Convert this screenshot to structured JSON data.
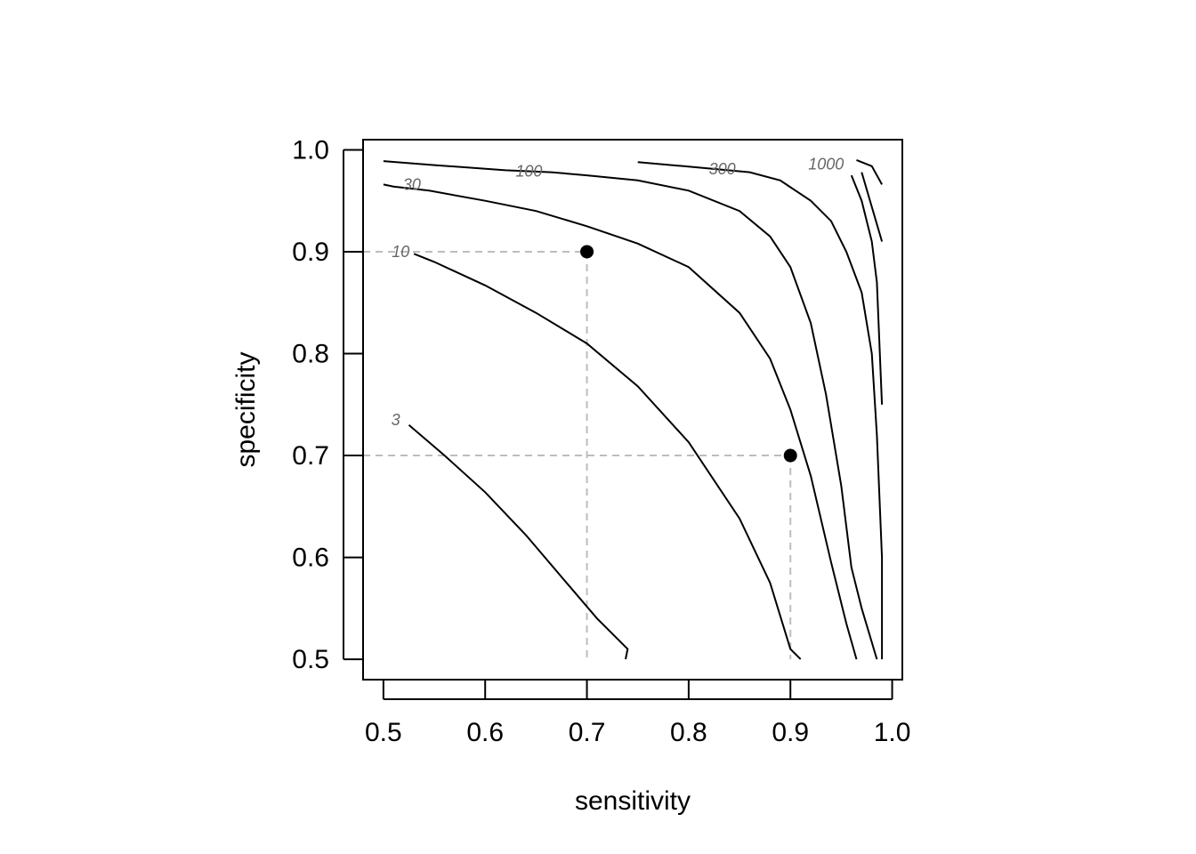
{
  "chart_data": {
    "type": "line",
    "subtype": "contour",
    "title": "",
    "xlabel": "sensitivity",
    "ylabel": "specificity",
    "xlim": [
      0.48,
      1.01
    ],
    "ylim": [
      0.48,
      1.01
    ],
    "xticks": [
      0.5,
      0.6,
      0.7,
      0.8,
      0.9,
      1.0
    ],
    "yticks": [
      0.5,
      0.6,
      0.7,
      0.8,
      0.9,
      1.0
    ],
    "xtick_labels": [
      "0.5",
      "0.6",
      "0.7",
      "0.8",
      "0.9",
      "1.0"
    ],
    "ytick_labels": [
      "0.5",
      "0.6",
      "0.7",
      "0.8",
      "0.9",
      "1.0"
    ],
    "grid": false,
    "series": [
      {
        "name": "3",
        "label_at": [
          0.512,
          0.735
        ],
        "points": [
          [
            0.525,
            0.73
          ],
          [
            0.56,
            0.7
          ],
          [
            0.6,
            0.664
          ],
          [
            0.64,
            0.622
          ],
          [
            0.68,
            0.575
          ],
          [
            0.71,
            0.54
          ],
          [
            0.74,
            0.51
          ],
          [
            0.738,
            0.5
          ]
        ]
      },
      {
        "name": "10",
        "label_at": [
          0.517,
          0.9
        ],
        "points": [
          [
            0.53,
            0.898
          ],
          [
            0.55,
            0.89
          ],
          [
            0.6,
            0.867
          ],
          [
            0.65,
            0.84
          ],
          [
            0.7,
            0.81
          ],
          [
            0.75,
            0.768
          ],
          [
            0.8,
            0.713
          ],
          [
            0.85,
            0.638
          ],
          [
            0.88,
            0.575
          ],
          [
            0.9,
            0.51
          ],
          [
            0.91,
            0.5
          ]
        ]
      },
      {
        "name": "30",
        "label_at": [
          0.528,
          0.966
        ],
        "points": [
          [
            0.5,
            0.966
          ],
          [
            0.51,
            0.964
          ],
          [
            0.545,
            0.96
          ],
          [
            0.6,
            0.95
          ],
          [
            0.65,
            0.94
          ],
          [
            0.7,
            0.925
          ],
          [
            0.75,
            0.908
          ],
          [
            0.8,
            0.885
          ],
          [
            0.85,
            0.84
          ],
          [
            0.88,
            0.795
          ],
          [
            0.9,
            0.745
          ],
          [
            0.92,
            0.68
          ],
          [
            0.94,
            0.595
          ],
          [
            0.955,
            0.535
          ],
          [
            0.965,
            0.5
          ]
        ]
      },
      {
        "name": "100",
        "label_at": [
          0.643,
          0.979
        ],
        "points": [
          [
            0.5,
            0.989
          ],
          [
            0.55,
            0.985
          ],
          [
            0.62,
            0.98
          ],
          [
            0.665,
            0.978
          ],
          [
            0.7,
            0.975
          ],
          [
            0.75,
            0.97
          ],
          [
            0.8,
            0.96
          ],
          [
            0.85,
            0.94
          ],
          [
            0.88,
            0.915
          ],
          [
            0.9,
            0.885
          ],
          [
            0.92,
            0.83
          ],
          [
            0.935,
            0.76
          ],
          [
            0.95,
            0.67
          ],
          [
            0.96,
            0.59
          ],
          [
            0.97,
            0.55
          ],
          [
            0.985,
            0.5
          ]
        ]
      },
      {
        "name": "300",
        "label_at": [
          0.833,
          0.981
        ],
        "points": [
          [
            0.75,
            0.988
          ],
          [
            0.795,
            0.984
          ],
          [
            0.86,
            0.978
          ],
          [
            0.89,
            0.97
          ],
          [
            0.92,
            0.95
          ],
          [
            0.94,
            0.93
          ],
          [
            0.955,
            0.9
          ],
          [
            0.97,
            0.86
          ],
          [
            0.98,
            0.8
          ],
          [
            0.985,
            0.72
          ],
          [
            0.99,
            0.6
          ],
          [
            0.99,
            0.5
          ]
        ]
      },
      {
        "name": "1000",
        "label_at": [
          0.935,
          0.986
        ],
        "points": [
          [
            0.96,
            0.975
          ],
          [
            0.97,
            0.95
          ],
          [
            0.98,
            0.91
          ],
          [
            0.985,
            0.87
          ],
          [
            0.99,
            0.75
          ]
        ]
      },
      {
        "name": "",
        "points": [
          [
            0.965,
            0.99
          ],
          [
            0.98,
            0.984
          ],
          [
            0.99,
            0.966
          ]
        ]
      },
      {
        "name": "",
        "points": [
          [
            0.97,
            0.978
          ],
          [
            0.99,
            0.91
          ]
        ]
      }
    ],
    "points": [
      {
        "x": 0.7,
        "y": 0.9
      },
      {
        "x": 0.9,
        "y": 0.7
      }
    ],
    "reference_lines": [
      {
        "from": [
          0.48,
          0.9
        ],
        "to": [
          0.7,
          0.9
        ]
      },
      {
        "from": [
          0.7,
          0.9
        ],
        "to": [
          0.7,
          0.5
        ]
      },
      {
        "from": [
          0.48,
          0.7
        ],
        "to": [
          0.9,
          0.7
        ]
      },
      {
        "from": [
          0.9,
          0.7
        ],
        "to": [
          0.9,
          0.5
        ]
      }
    ]
  }
}
